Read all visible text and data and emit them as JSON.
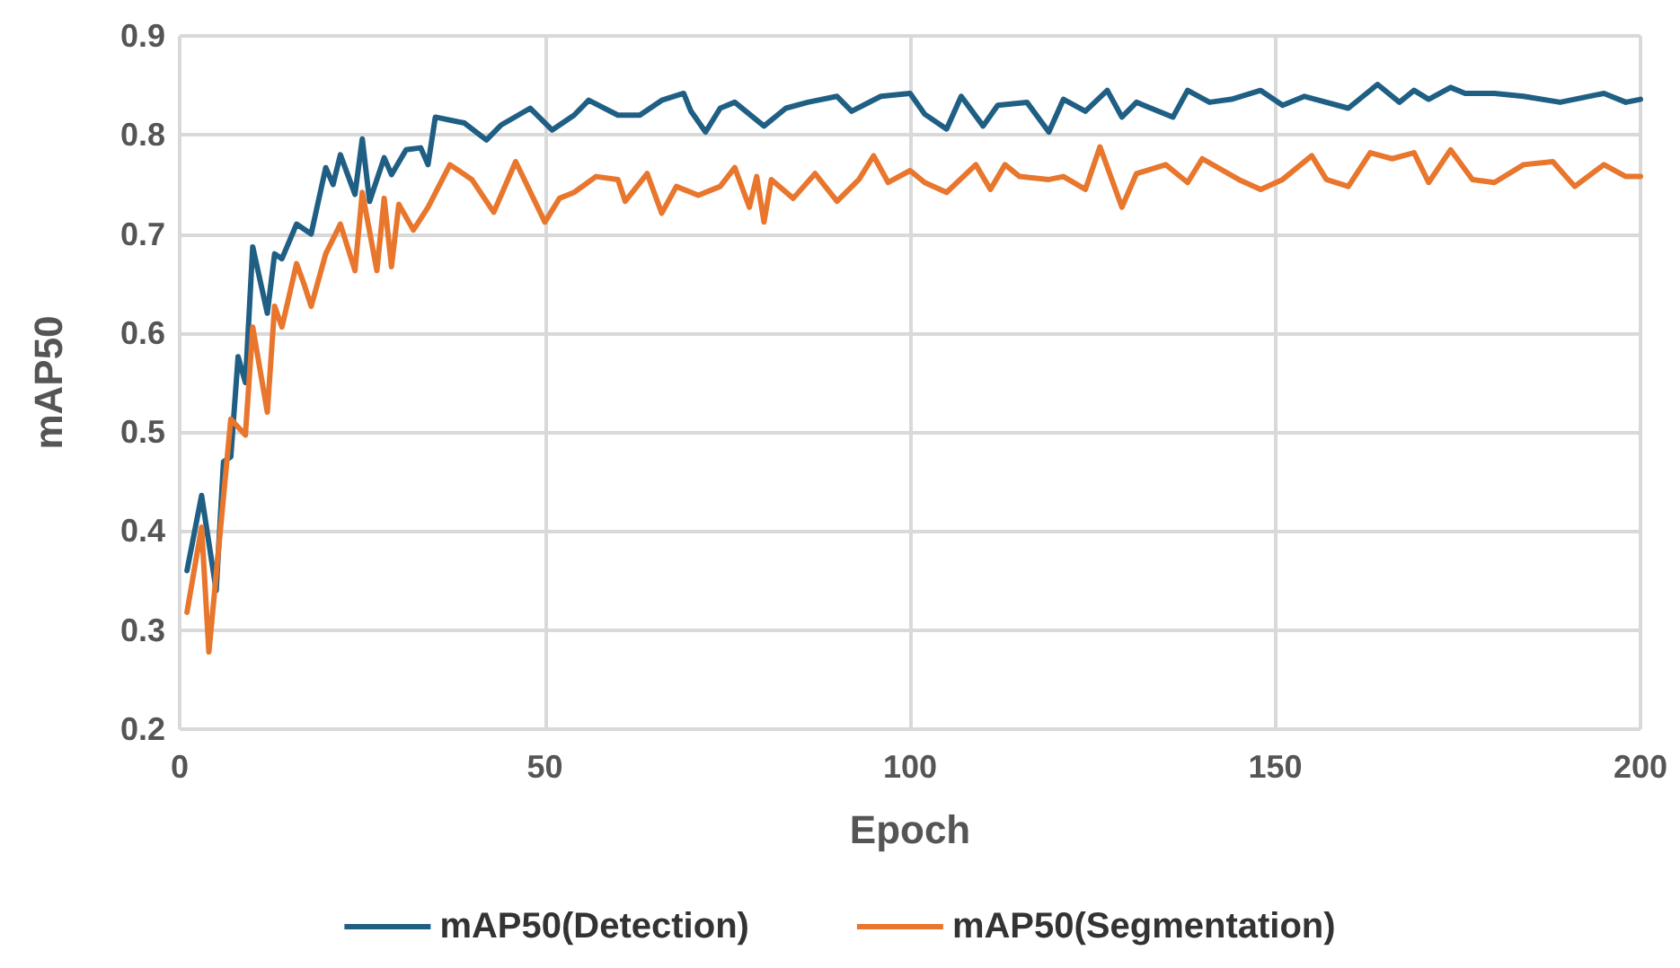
{
  "chart_data": {
    "type": "line",
    "xlabel": "Epoch",
    "ylabel": "mAP50",
    "xlim": [
      0,
      200
    ],
    "xticks": [
      0,
      50,
      100,
      150,
      200
    ],
    "ylim": [
      0.2,
      0.9
    ],
    "yticks": [
      0.2,
      0.3,
      0.4,
      0.5,
      0.6,
      0.7,
      0.8,
      0.9
    ],
    "grid": true,
    "legend": "bottom",
    "marker": "none",
    "line_style": "solid",
    "series": [
      {
        "name": "mAP50(Detection)",
        "color": "#1f5f84",
        "x": [
          1,
          3,
          5,
          6,
          7,
          8,
          9,
          10,
          12,
          13,
          14,
          16,
          18,
          20,
          21,
          22,
          24,
          25,
          26,
          28,
          29,
          31,
          33,
          34,
          35,
          39,
          42,
          44,
          48,
          51,
          54,
          56,
          60,
          63,
          66,
          69,
          70,
          72,
          74,
          76,
          80,
          83,
          86,
          90,
          92,
          96,
          100,
          102,
          105,
          107,
          110,
          112,
          116,
          119,
          121,
          124,
          127,
          129,
          131,
          136,
          138,
          141,
          144,
          148,
          151,
          154,
          160,
          164,
          167,
          169,
          171,
          174,
          176,
          180,
          184,
          189,
          195,
          198,
          200
        ],
        "values": [
          0.36,
          0.436,
          0.34,
          0.47,
          0.475,
          0.576,
          0.55,
          0.687,
          0.62,
          0.68,
          0.675,
          0.71,
          0.7,
          0.767,
          0.75,
          0.78,
          0.74,
          0.796,
          0.733,
          0.777,
          0.76,
          0.785,
          0.787,
          0.77,
          0.818,
          0.812,
          0.795,
          0.81,
          0.827,
          0.805,
          0.82,
          0.835,
          0.82,
          0.82,
          0.835,
          0.842,
          0.824,
          0.803,
          0.827,
          0.833,
          0.809,
          0.827,
          0.833,
          0.839,
          0.824,
          0.839,
          0.842,
          0.821,
          0.806,
          0.839,
          0.809,
          0.83,
          0.833,
          0.803,
          0.836,
          0.824,
          0.845,
          0.818,
          0.833,
          0.818,
          0.845,
          0.833,
          0.836,
          0.845,
          0.83,
          0.839,
          0.827,
          0.851,
          0.833,
          0.845,
          0.836,
          0.848,
          0.842,
          0.842,
          0.839,
          0.833,
          0.842,
          0.833,
          0.836
        ]
      },
      {
        "name": "mAP50(Segmentation)",
        "color": "#e8762d",
        "x": [
          1,
          3,
          4,
          7,
          9,
          10,
          12,
          13,
          14,
          16,
          17,
          18,
          20,
          22,
          24,
          25,
          27,
          28,
          29,
          30,
          32,
          34,
          37,
          40,
          43,
          46,
          50,
          52,
          54,
          57,
          60,
          61,
          64,
          66,
          68,
          71,
          74,
          76,
          78,
          79,
          80,
          81,
          84,
          87,
          90,
          93,
          95,
          97,
          100,
          102,
          105,
          109,
          111,
          113,
          115,
          119,
          121,
          124,
          126,
          129,
          131,
          135,
          138,
          140,
          145,
          148,
          151,
          155,
          157,
          160,
          163,
          166,
          169,
          171,
          174,
          177,
          180,
          184,
          188,
          191,
          195,
          198,
          200
        ],
        "values": [
          0.318,
          0.404,
          0.278,
          0.513,
          0.497,
          0.606,
          0.52,
          0.627,
          0.606,
          0.67,
          0.65,
          0.627,
          0.68,
          0.71,
          0.663,
          0.742,
          0.663,
          0.736,
          0.667,
          0.73,
          0.704,
          0.727,
          0.77,
          0.755,
          0.722,
          0.773,
          0.712,
          0.736,
          0.742,
          0.758,
          0.755,
          0.733,
          0.761,
          0.721,
          0.748,
          0.739,
          0.748,
          0.767,
          0.727,
          0.758,
          0.712,
          0.755,
          0.736,
          0.761,
          0.733,
          0.755,
          0.779,
          0.752,
          0.764,
          0.752,
          0.742,
          0.77,
          0.745,
          0.77,
          0.758,
          0.755,
          0.758,
          0.745,
          0.788,
          0.727,
          0.761,
          0.77,
          0.752,
          0.776,
          0.755,
          0.745,
          0.755,
          0.779,
          0.755,
          0.748,
          0.782,
          0.776,
          0.782,
          0.752,
          0.785,
          0.755,
          0.752,
          0.77,
          0.773,
          0.748,
          0.77,
          0.758,
          0.758
        ]
      }
    ]
  }
}
